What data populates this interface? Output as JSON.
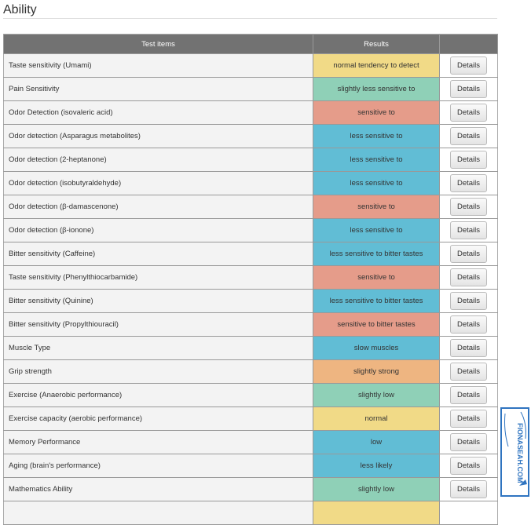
{
  "page_title": "Ability",
  "table": {
    "headers": [
      "Test items",
      "Results",
      ""
    ],
    "details_label": "Details",
    "rows": [
      {
        "item": "Taste sensitivity (Umami)",
        "result": "normal tendency to detect",
        "color": "#f1da87"
      },
      {
        "item": "Pain Sensitivity",
        "result": "slightly less sensitive to",
        "color": "#8fd0b7"
      },
      {
        "item": "Odor Detection (isovaleric acid)",
        "result": "sensitive to",
        "color": "#e59c8a"
      },
      {
        "item": "Odor detection (Asparagus metabolites)",
        "result": "less sensitive to",
        "color": "#61bdd5"
      },
      {
        "item": "Odor detection (2-heptanone)",
        "result": "less sensitive to",
        "color": "#61bdd5"
      },
      {
        "item": "Odor detection (isobutyraldehyde)",
        "result": "less sensitive to",
        "color": "#61bdd5"
      },
      {
        "item": "Odor detection (β-damascenone)",
        "result": "sensitive to",
        "color": "#e59c8a"
      },
      {
        "item": "Odor detection (β-ionone)",
        "result": "less sensitive to",
        "color": "#61bdd5"
      },
      {
        "item": "Bitter sensitivity (Caffeine)",
        "result": "less sensitive to bitter tastes",
        "color": "#61bdd5"
      },
      {
        "item": "Taste sensitivity (Phenylthiocarbamide)",
        "result": "sensitive to",
        "color": "#e59c8a"
      },
      {
        "item": "Bitter sensitivity (Quinine)",
        "result": "less sensitive to bitter tastes",
        "color": "#61bdd5"
      },
      {
        "item": "Bitter sensitivity (Propylthiouracil)",
        "result": "sensitive to bitter tastes",
        "color": "#e59c8a"
      },
      {
        "item": "Muscle Type",
        "result": "slow muscles",
        "color": "#61bdd5"
      },
      {
        "item": "Grip strength",
        "result": "slightly strong",
        "color": "#eeb581"
      },
      {
        "item": "Exercise (Anaerobic performance)",
        "result": "slightly low",
        "color": "#8fd0b7"
      },
      {
        "item": "Exercise capacity (aerobic performance)",
        "result": "normal",
        "color": "#f1da87"
      },
      {
        "item": "Memory Performance",
        "result": "low",
        "color": "#61bdd5"
      },
      {
        "item": "Aging (brain's performance)",
        "result": "less likely",
        "color": "#61bdd5"
      },
      {
        "item": "Mathematics Ability",
        "result": "slightly low",
        "color": "#8fd0b7"
      },
      {
        "item": "",
        "result": "",
        "color": "#f1da87"
      }
    ]
  },
  "watermark": "FIONASEAH.COM"
}
